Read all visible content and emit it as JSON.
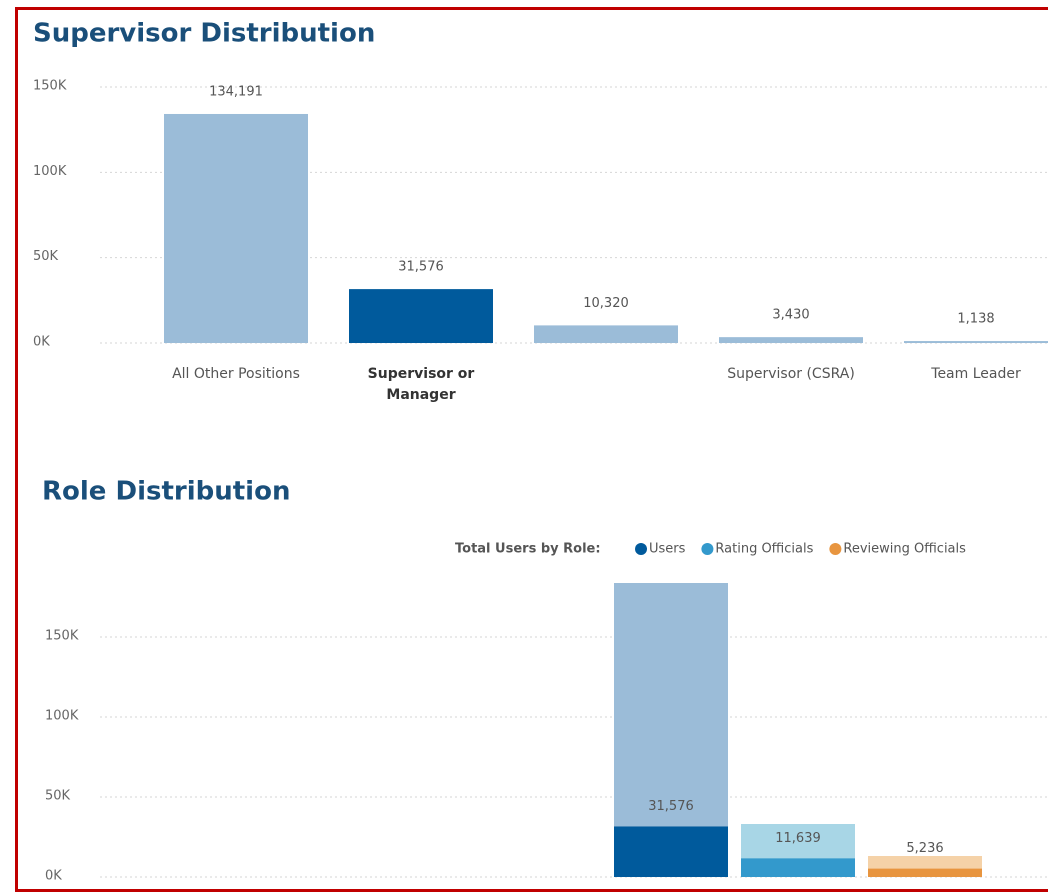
{
  "chart_data": [
    {
      "type": "bar",
      "title": "Supervisor Distribution",
      "categories": [
        "All Other Positions",
        "Supervisor or Manager",
        null,
        "Supervisor (CSRA)",
        "Team Leader"
      ],
      "values": [
        134191,
        31576,
        10320,
        3430,
        1138
      ],
      "value_labels": [
        "134,191",
        "31,576",
        "10,320",
        "3,430",
        "1,138"
      ],
      "colors": [
        "#9bbcd8",
        "#005a9c",
        "#9bbcd8",
        "#9bbcd8",
        "#9bbcd8"
      ],
      "selected": 1,
      "ylim": [
        0,
        150000
      ],
      "yticks": [
        {
          "value": 0,
          "label": "0K"
        },
        {
          "value": 50000,
          "label": "50K"
        },
        {
          "value": 100000,
          "label": "100K"
        },
        {
          "value": 150000,
          "label": "150K"
        }
      ],
      "grid": true
    },
    {
      "type": "highlight_bar",
      "title": "Role Distribution",
      "legend_title": "Total Users by Role:",
      "series": [
        {
          "name": "Users",
          "color": "#005a9c",
          "light_color": "#9bbcd8",
          "values": [
            31576
          ],
          "totals": [
            183750
          ],
          "value_labels": [
            "31,576"
          ]
        },
        {
          "name": "Rating Officials",
          "color": "#3399cc",
          "light_color": "#a8d6e6",
          "values": [
            11639
          ],
          "totals": [
            33125
          ],
          "value_labels": [
            "11,639"
          ]
        },
        {
          "name": "Reviewing Officials",
          "color": "#e8953f",
          "light_color": "#f5d2a8",
          "values": [
            5236
          ],
          "totals": [
            13125
          ],
          "value_labels": [
            "5,236"
          ]
        }
      ],
      "ylim": [
        0,
        190000
      ],
      "yticks": [
        {
          "value": 0,
          "label": "0K"
        },
        {
          "value": 50000,
          "label": "50K"
        },
        {
          "value": 100000,
          "label": "100K"
        },
        {
          "value": 150000,
          "label": "150K"
        }
      ],
      "grid": true
    }
  ]
}
